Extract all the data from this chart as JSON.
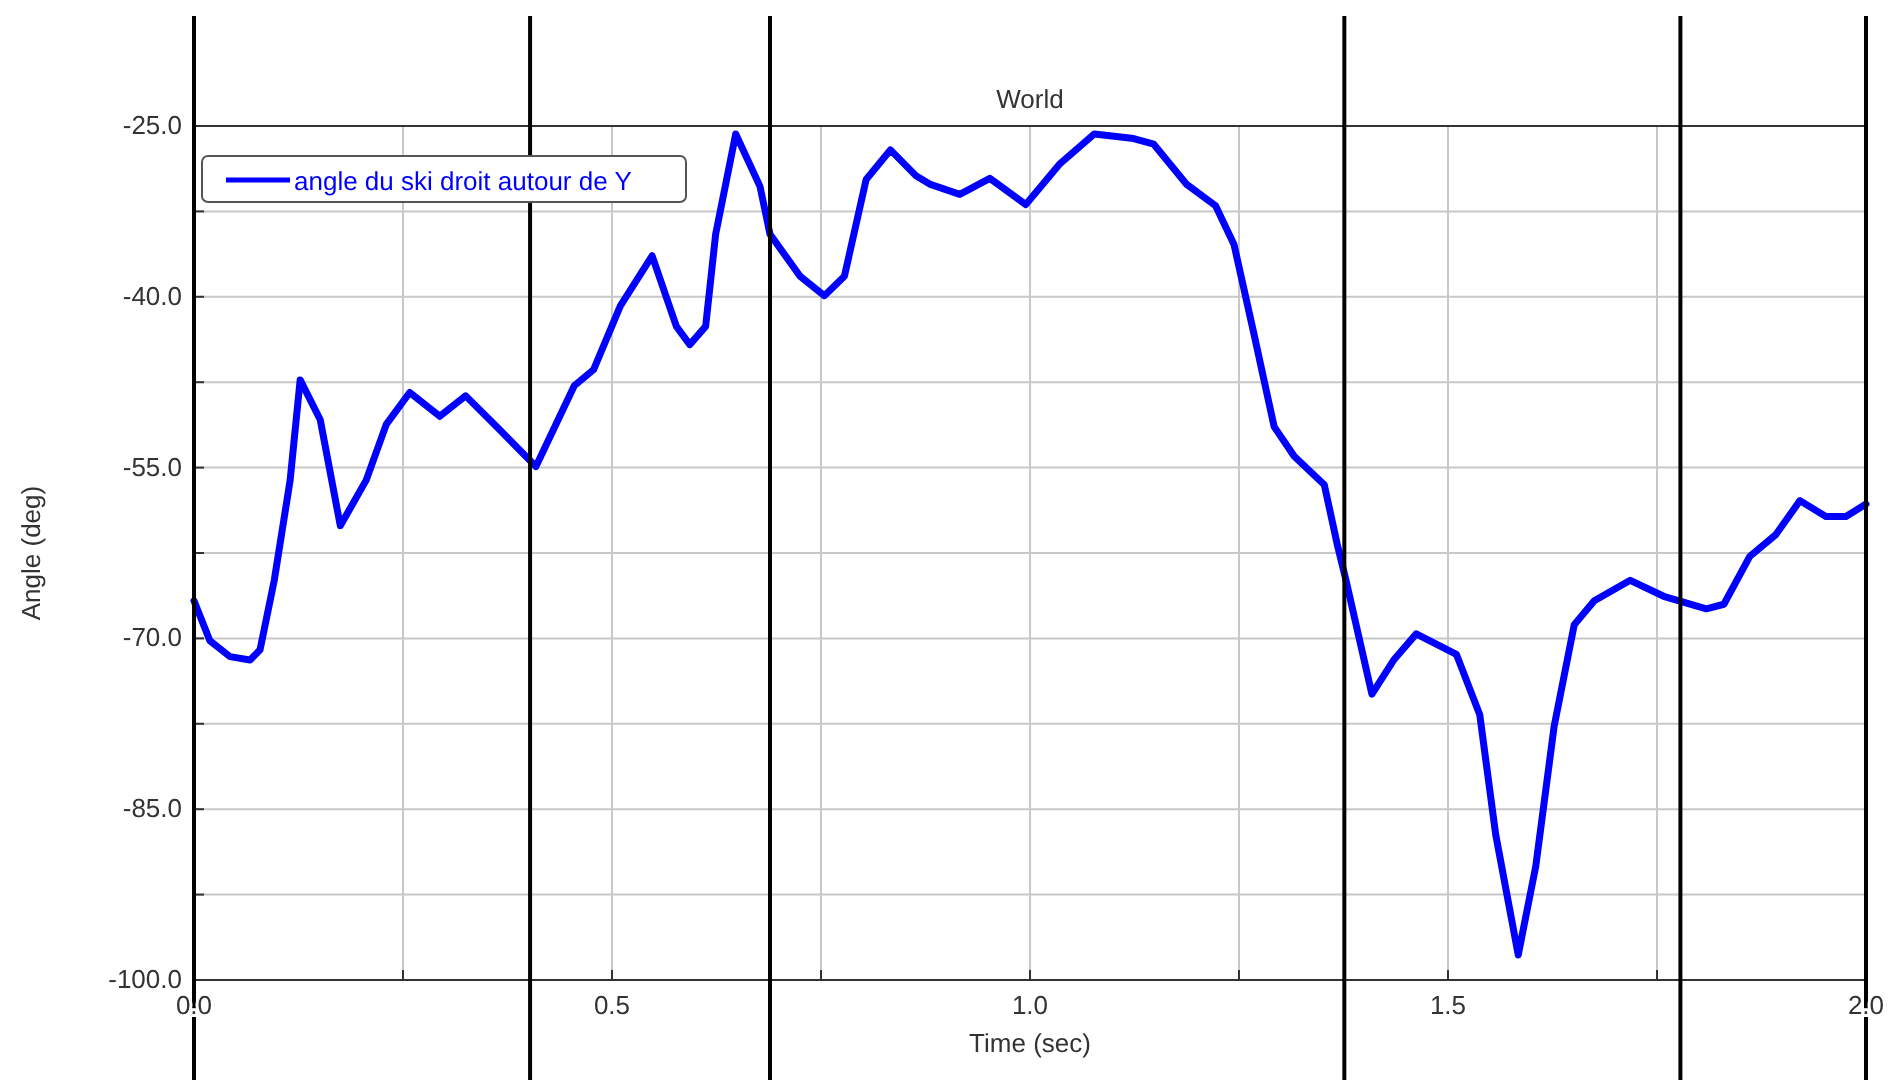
{
  "chart_data": {
    "type": "line",
    "title": "World",
    "xlabel": "Time (sec)",
    "ylabel": "Angle (deg)",
    "xlim": [
      0,
      2
    ],
    "ylim": [
      -100,
      -25
    ],
    "xticks": [
      {
        "value": 0,
        "label": "0.0"
      },
      {
        "value": 0.25,
        "label": null
      },
      {
        "value": 0.5,
        "label": "0.5"
      },
      {
        "value": 0.75,
        "label": null
      },
      {
        "value": 1,
        "label": "1.0"
      },
      {
        "value": 1.25,
        "label": null
      },
      {
        "value": 1.5,
        "label": "1.5"
      },
      {
        "value": 1.75,
        "label": null
      },
      {
        "value": 2,
        "label": "2.0"
      }
    ],
    "yticks": [
      {
        "value": -100,
        "label": "-100.0"
      },
      {
        "value": -92.5,
        "label": null
      },
      {
        "value": -85,
        "label": "-85.0"
      },
      {
        "value": -77.5,
        "label": null
      },
      {
        "value": -70,
        "label": "-70.0"
      },
      {
        "value": -62.5,
        "label": null
      },
      {
        "value": -55,
        "label": "-55.0"
      },
      {
        "value": -47.5,
        "label": null
      },
      {
        "value": -40,
        "label": "-40.0"
      },
      {
        "value": -32.5,
        "label": null
      },
      {
        "value": -25,
        "label": "-25.0"
      }
    ],
    "grid": true,
    "legend": "top left",
    "marker": "none",
    "line_style": "solid",
    "ref_lines": [
      {
        "axis": "x",
        "value": 0,
        "color": "#000000"
      },
      {
        "axis": "x",
        "value": 0.402,
        "color": "#000000"
      },
      {
        "axis": "x",
        "value": 0.689,
        "color": "#000000"
      },
      {
        "axis": "x",
        "value": 1.376,
        "color": "#000000"
      },
      {
        "axis": "x",
        "value": 1.778,
        "color": "#000000"
      },
      {
        "axis": "x",
        "value": 2,
        "color": "#000000"
      }
    ],
    "series": [
      {
        "name": "angle du ski droit autour de Y",
        "color": "#0000ff",
        "x": [
          0,
          0.019,
          0.043,
          0.067,
          0.079,
          0.096,
          0.115,
          0.127,
          0.151,
          0.175,
          0.206,
          0.23,
          0.258,
          0.294,
          0.325,
          0.366,
          0.409,
          0.455,
          0.478,
          0.51,
          0.548,
          0.577,
          0.593,
          0.612,
          0.624,
          0.648,
          0.677,
          0.689,
          0.725,
          0.754,
          0.778,
          0.804,
          0.833,
          0.864,
          0.88,
          0.916,
          0.952,
          0.995,
          1.036,
          1.077,
          1.124,
          1.148,
          1.187,
          1.222,
          1.244,
          1.268,
          1.292,
          1.316,
          1.352,
          1.368,
          1.378,
          1.409,
          1.435,
          1.462,
          1.51,
          1.538,
          1.557,
          1.584,
          1.605,
          1.627,
          1.651,
          1.675,
          1.718,
          1.758,
          1.809,
          1.83,
          1.861,
          1.892,
          1.921,
          1.952,
          1.976,
          2.0
        ],
        "values": [
          -66.7,
          -70.2,
          -71.6,
          -71.9,
          -71.0,
          -64.9,
          -56.1,
          -47.3,
          -50.8,
          -60.1,
          -56.1,
          -51.2,
          -48.4,
          -50.5,
          -48.7,
          -51.7,
          -54.9,
          -47.8,
          -46.4,
          -40.8,
          -36.4,
          -42.6,
          -44.2,
          -42.6,
          -34.5,
          -25.7,
          -30.3,
          -34.5,
          -38.2,
          -39.9,
          -38.2,
          -29.7,
          -27.1,
          -29.4,
          -30.1,
          -31.0,
          -29.6,
          -31.9,
          -28.3,
          -25.7,
          -26.1,
          -26.6,
          -30.1,
          -32.0,
          -35.4,
          -43.3,
          -51.4,
          -54.0,
          -56.5,
          -61.9,
          -64.9,
          -74.9,
          -71.9,
          -69.6,
          -71.4,
          -76.7,
          -87.2,
          -97.8,
          -90.0,
          -77.7,
          -68.8,
          -66.7,
          -64.9,
          -66.3,
          -67.4,
          -67.0,
          -62.8,
          -60.9,
          -57.9,
          -59.3,
          -59.3,
          -58.2
        ]
      }
    ]
  }
}
